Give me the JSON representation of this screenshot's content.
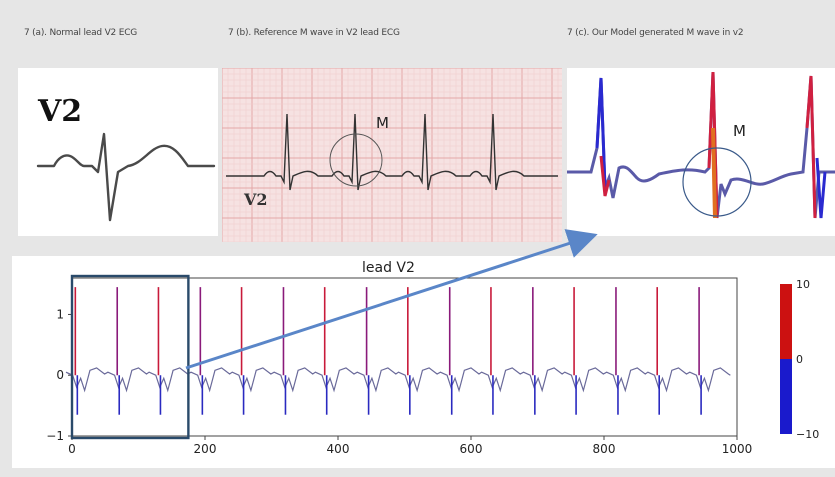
{
  "captions": {
    "a": "7 (a). Normal lead V2 ECG",
    "b": "7 (b). Reference M wave in V2 lead ECG",
    "c": "7 (c). Our Model generated M wave in v2"
  },
  "panel_a": {
    "lead_label": "V2"
  },
  "panel_b": {
    "m_label": "M",
    "lead_label": "V2"
  },
  "panel_c": {
    "m_label": "M"
  },
  "chart_data": {
    "type": "line",
    "title": "lead V2",
    "xlim": [
      0,
      1000
    ],
    "ylim": [
      -1,
      1.6
    ],
    "x_ticks": [
      "0",
      "200",
      "400",
      "600",
      "800",
      "1000"
    ],
    "y_ticks": [
      "1",
      "0",
      "−1"
    ],
    "colorbar_ticks": [
      "10",
      "0",
      "−10"
    ],
    "colorbar_colors": {
      "high": "#cc1111",
      "low": "#1a1acc"
    },
    "highlight_box_x": [
      0,
      175
    ],
    "r_peak_positions": [
      5,
      68,
      130,
      193,
      255,
      318,
      380,
      443,
      505,
      568,
      630,
      693,
      755,
      818,
      880,
      943
    ],
    "baseline_color": "#6a6a9a",
    "box_color": "#2a4a6a",
    "arrow_color": "#5a86c8"
  }
}
